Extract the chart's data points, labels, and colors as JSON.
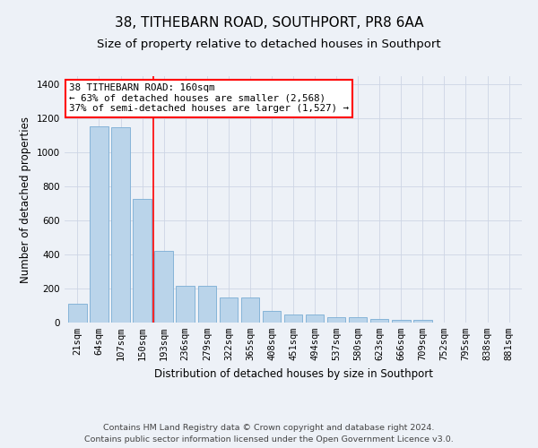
{
  "title": "38, TITHEBARN ROAD, SOUTHPORT, PR8 6AA",
  "subtitle": "Size of property relative to detached houses in Southport",
  "xlabel": "Distribution of detached houses by size in Southport",
  "ylabel": "Number of detached properties",
  "footer_line1": "Contains HM Land Registry data © Crown copyright and database right 2024.",
  "footer_line2": "Contains public sector information licensed under the Open Government Licence v3.0.",
  "categories": [
    "21sqm",
    "64sqm",
    "107sqm",
    "150sqm",
    "193sqm",
    "236sqm",
    "279sqm",
    "322sqm",
    "365sqm",
    "408sqm",
    "451sqm",
    "494sqm",
    "537sqm",
    "580sqm",
    "623sqm",
    "666sqm",
    "709sqm",
    "752sqm",
    "795sqm",
    "838sqm",
    "881sqm"
  ],
  "values": [
    110,
    1155,
    1150,
    730,
    420,
    215,
    215,
    150,
    150,
    70,
    48,
    50,
    30,
    30,
    20,
    18,
    15,
    0,
    0,
    0,
    0
  ],
  "bar_color": "#bad4ea",
  "bar_edge_color": "#7aadd4",
  "vline_x": 3.5,
  "vline_color": "red",
  "annotation_text": "38 TITHEBARN ROAD: 160sqm\n← 63% of detached houses are smaller (2,568)\n37% of semi-detached houses are larger (1,527) →",
  "annotation_box_color": "white",
  "annotation_box_edge_color": "red",
  "ylim": [
    0,
    1450
  ],
  "yticks": [
    0,
    200,
    400,
    600,
    800,
    1000,
    1200,
    1400
  ],
  "grid_color": "#cdd5e5",
  "background_color": "#edf1f7",
  "title_fontsize": 11,
  "subtitle_fontsize": 9.5,
  "axis_label_fontsize": 8.5,
  "tick_fontsize": 7.5,
  "footer_fontsize": 6.8,
  "annotation_fontsize": 7.8
}
